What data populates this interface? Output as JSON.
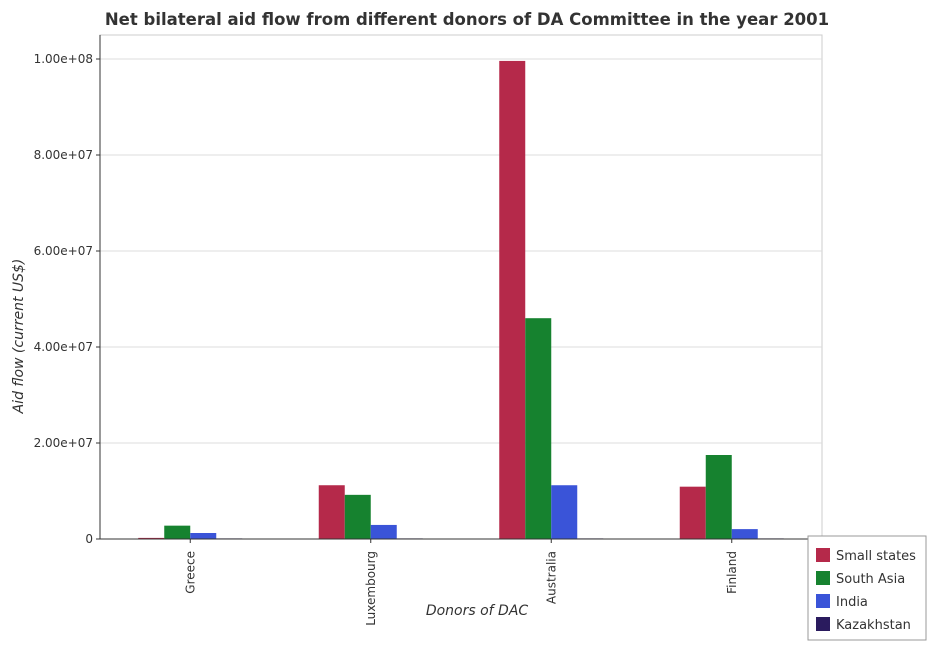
{
  "chart_data": {
    "type": "bar",
    "title": "Net bilateral aid flow from different donors of DA Committee in the year 2001",
    "xlabel": "Donors of DAC",
    "ylabel": "Aid flow (current US$)",
    "categories": [
      "Greece",
      "Luxembourg",
      "Australia",
      "Finland"
    ],
    "ylim": [
      0,
      105000000
    ],
    "yticks": [
      0,
      20000000,
      40000000,
      60000000,
      80000000,
      100000000
    ],
    "ytick_labels": [
      "0",
      "2.00e+07",
      "4.00e+07",
      "6.00e+07",
      "8.00e+07",
      "1.00e+08"
    ],
    "grid": true,
    "legend_position": "bottom-right",
    "series": [
      {
        "name": "Small states",
        "color": "#b5294a",
        "values": [
          230000,
          11200000,
          99600000,
          10900000
        ]
      },
      {
        "name": "South Asia",
        "color": "#16822f",
        "values": [
          2780000,
          9200000,
          46000000,
          17500000
        ]
      },
      {
        "name": "India",
        "color": "#3a54d8",
        "values": [
          1250000,
          2930000,
          11200000,
          2060000
        ]
      },
      {
        "name": "Kazakhstan",
        "color": "#2a1b5e",
        "values": [
          20000,
          50000,
          10000,
          80000
        ]
      }
    ]
  }
}
